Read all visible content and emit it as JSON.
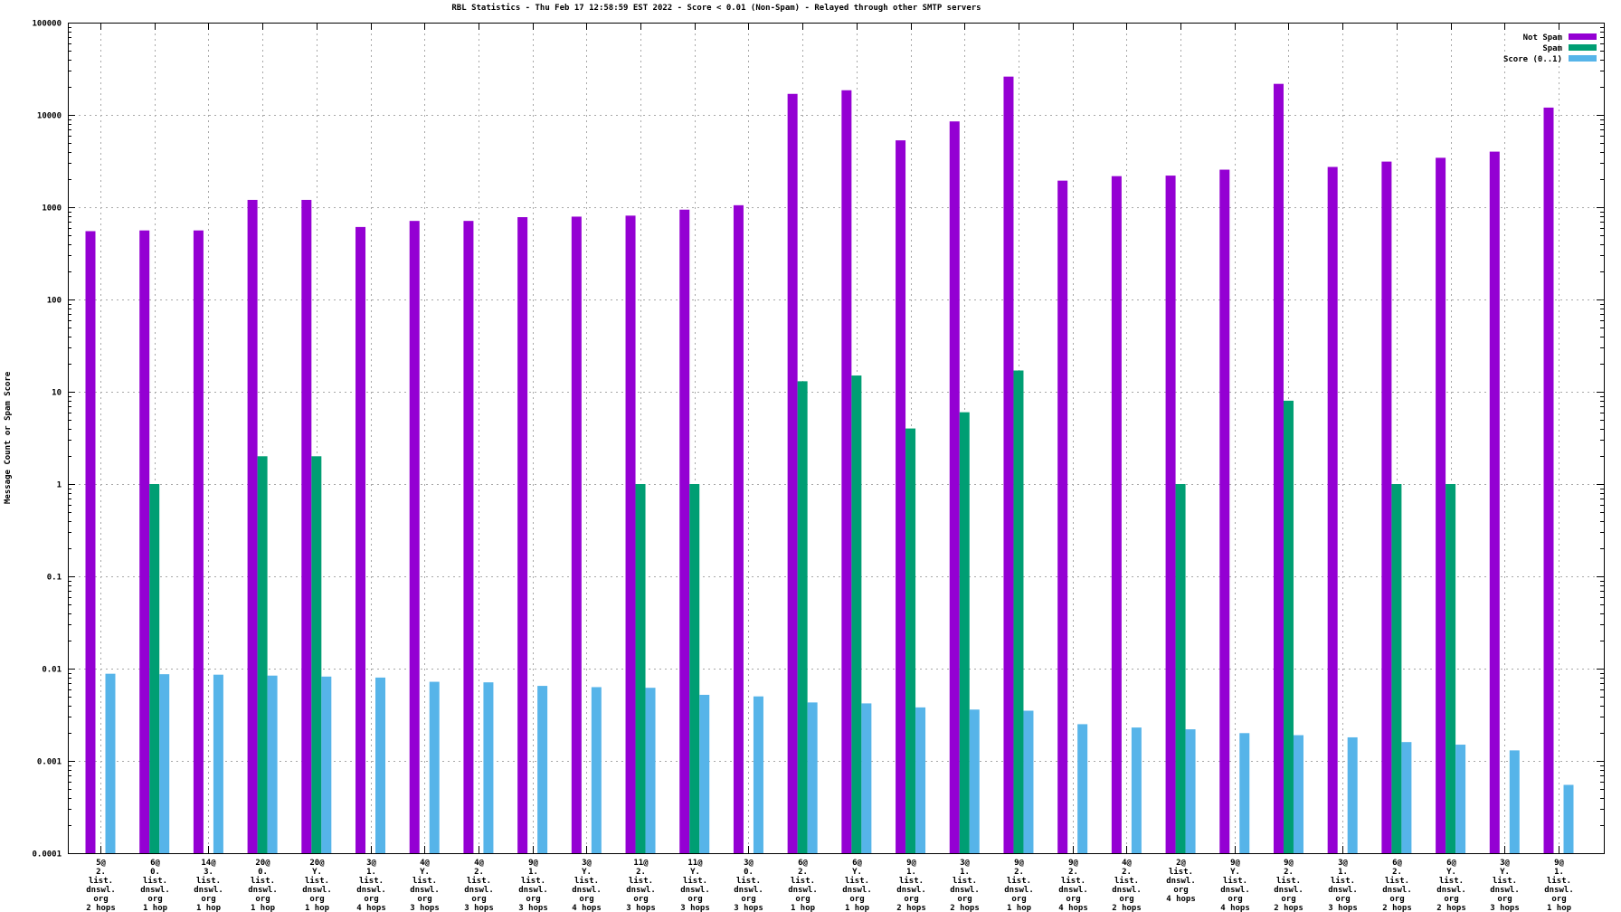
{
  "header": {
    "title": "RBL Statistics - Thu Feb 17 12:58:59 EST 2022 - Score < 0.01 (Non-Spam) - Relayed through other SMTP servers"
  },
  "axes": {
    "ylabel": "Message Count or Spam Score",
    "ytick_labels": [
      "100000",
      "10000",
      "1000",
      "100",
      "10",
      "1",
      "0.1",
      "0.01",
      "0.001",
      "0.0001"
    ]
  },
  "legend": {
    "position": "top-right-inside",
    "items": [
      {
        "label": "Not Spam",
        "color": "#9400d3"
      },
      {
        "label": "Spam",
        "color": "#009e73"
      },
      {
        "label": "Score (0..1)",
        "color": "#56b4e9"
      }
    ]
  },
  "chart_data": {
    "type": "bar",
    "title": "RBL Statistics - Thu Feb 17 12:58:59 EST 2022 - Score < 0.01 (Non-Spam) - Relayed through other SMTP servers",
    "xlabel": "",
    "ylabel": "Message Count or Spam Score",
    "yscale": "log",
    "ylim": [
      0.0001,
      100000
    ],
    "ytick_labels": [
      "100000",
      "10000",
      "1000",
      "100",
      "10",
      "1",
      "0.1",
      "0.01",
      "0.001",
      "0.0001"
    ],
    "grid": true,
    "legend_position": "top-right inside",
    "categories": [
      [
        "5@",
        "2.",
        "list.",
        "dnswl.",
        "org",
        "2 hops"
      ],
      [
        "6@",
        "0.",
        "list.",
        "dnswl.",
        "org",
        "1 hop"
      ],
      [
        "14@",
        "3.",
        "list.",
        "dnswl.",
        "org",
        "1 hop"
      ],
      [
        "20@",
        "0.",
        "list.",
        "dnswl.",
        "org",
        "1 hop"
      ],
      [
        "20@",
        "Y.",
        "list.",
        "dnswl.",
        "org",
        "1 hop"
      ],
      [
        "3@",
        "1.",
        "list.",
        "dnswl.",
        "org",
        "4 hops"
      ],
      [
        "4@",
        "Y.",
        "list.",
        "dnswl.",
        "org",
        "3 hops"
      ],
      [
        "4@",
        "2.",
        "list.",
        "dnswl.",
        "org",
        "3 hops"
      ],
      [
        "9@",
        "1.",
        "list.",
        "dnswl.",
        "org",
        "3 hops"
      ],
      [
        "3@",
        "Y.",
        "list.",
        "dnswl.",
        "org",
        "4 hops"
      ],
      [
        "11@",
        "2.",
        "list.",
        "dnswl.",
        "org",
        "3 hops"
      ],
      [
        "11@",
        "Y.",
        "list.",
        "dnswl.",
        "org",
        "3 hops"
      ],
      [
        "3@",
        "0.",
        "list.",
        "dnswl.",
        "org",
        "3 hops"
      ],
      [
        "6@",
        "2.",
        "list.",
        "dnswl.",
        "org",
        "1 hop"
      ],
      [
        "6@",
        "Y.",
        "list.",
        "dnswl.",
        "org",
        "1 hop"
      ],
      [
        "9@",
        "1.",
        "list.",
        "dnswl.",
        "org",
        "2 hops"
      ],
      [
        "3@",
        "1.",
        "list.",
        "dnswl.",
        "org",
        "2 hops"
      ],
      [
        "9@",
        "2.",
        "list.",
        "dnswl.",
        "org",
        "1 hop"
      ],
      [
        "9@",
        "2.",
        "list.",
        "dnswl.",
        "org",
        "4 hops"
      ],
      [
        "4@",
        "2.",
        "list.",
        "dnswl.",
        "org",
        "2 hops"
      ],
      [
        "2@",
        "list.",
        "dnswl.",
        "org",
        "4 hops"
      ],
      [
        "9@",
        "Y.",
        "list.",
        "dnswl.",
        "org",
        "4 hops"
      ],
      [
        "9@",
        "2.",
        "list.",
        "dnswl.",
        "org",
        "2 hops"
      ],
      [
        "3@",
        "1.",
        "list.",
        "dnswl.",
        "org",
        "3 hops"
      ],
      [
        "6@",
        "2.",
        "list.",
        "dnswl.",
        "org",
        "2 hops"
      ],
      [
        "6@",
        "Y.",
        "list.",
        "dnswl.",
        "org",
        "2 hops"
      ],
      [
        "3@",
        "Y.",
        "list.",
        "dnswl.",
        "org",
        "3 hops"
      ],
      [
        "9@",
        "1.",
        "list.",
        "dnswl.",
        "org",
        "1 hop"
      ]
    ],
    "series": [
      {
        "name": "Not Spam",
        "color": "#9400d3",
        "values": [
          550,
          560,
          560,
          1200,
          1200,
          610,
          710,
          710,
          780,
          790,
          810,
          940,
          1050,
          16900,
          18500,
          5300,
          8500,
          26000,
          1940,
          2170,
          2200,
          2550,
          21700,
          2730,
          3120,
          3430,
          4000,
          12000
        ]
      },
      {
        "name": "Spam",
        "color": "#009e73",
        "values": [
          0,
          1,
          0,
          2,
          2,
          0,
          0,
          0,
          0,
          0,
          1,
          1,
          0,
          13,
          15,
          4,
          6,
          17,
          0,
          0,
          1,
          0,
          8,
          0,
          1,
          1,
          0,
          0
        ]
      },
      {
        "name": "Score (0..1)",
        "color": "#56b4e9",
        "values": [
          0.0088,
          0.0087,
          0.0086,
          0.0084,
          0.0082,
          0.008,
          0.0072,
          0.0071,
          0.0065,
          0.0063,
          0.0062,
          0.0052,
          0.005,
          0.0043,
          0.0042,
          0.0038,
          0.0036,
          0.0035,
          0.0025,
          0.0023,
          0.0022,
          0.002,
          0.0019,
          0.0018,
          0.0016,
          0.0015,
          0.0013,
          0.00055
        ]
      }
    ]
  }
}
